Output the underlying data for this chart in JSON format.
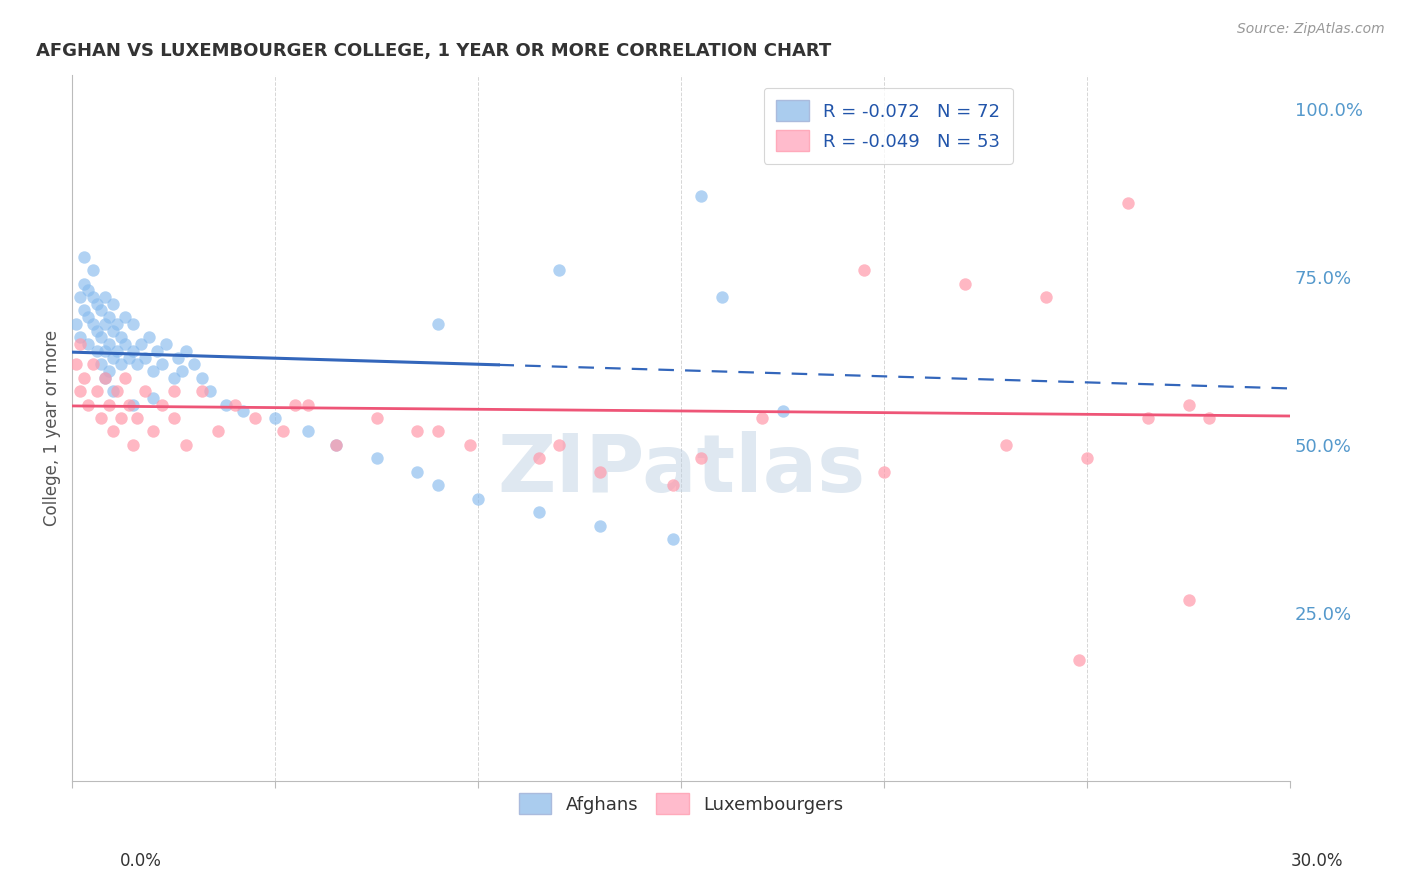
{
  "title": "AFGHAN VS LUXEMBOURGER COLLEGE, 1 YEAR OR MORE CORRELATION CHART",
  "source": "Source: ZipAtlas.com",
  "ylabel": "College, 1 year or more",
  "yaxis_labels": [
    "100.0%",
    "75.0%",
    "50.0%",
    "25.0%"
  ],
  "yaxis_values": [
    1.0,
    0.75,
    0.5,
    0.25
  ],
  "legend_afghan": "R = -0.072   N = 72",
  "legend_luxembourger": "R = -0.049   N = 53",
  "watermark": "ZIPatlas",
  "blue_dot": "#88BBEE",
  "pink_dot": "#FF99AA",
  "blue_light": "#AACCEE",
  "pink_light": "#FFBBCC",
  "trend_blue": "#3366BB",
  "trend_pink": "#EE5577",
  "afghan_x": [
    0.001,
    0.002,
    0.002,
    0.003,
    0.003,
    0.003,
    0.004,
    0.004,
    0.004,
    0.005,
    0.005,
    0.005,
    0.006,
    0.006,
    0.006,
    0.007,
    0.007,
    0.007,
    0.008,
    0.008,
    0.008,
    0.008,
    0.009,
    0.009,
    0.009,
    0.01,
    0.01,
    0.01,
    0.011,
    0.011,
    0.012,
    0.012,
    0.013,
    0.013,
    0.014,
    0.015,
    0.015,
    0.016,
    0.017,
    0.018,
    0.019,
    0.02,
    0.021,
    0.022,
    0.023,
    0.025,
    0.026,
    0.027,
    0.028,
    0.03,
    0.032,
    0.034,
    0.038,
    0.042,
    0.05,
    0.058,
    0.065,
    0.075,
    0.085,
    0.09,
    0.1,
    0.115,
    0.13,
    0.148,
    0.155,
    0.09,
    0.12,
    0.16,
    0.175,
    0.01,
    0.015,
    0.02
  ],
  "afghan_y": [
    0.68,
    0.72,
    0.66,
    0.7,
    0.74,
    0.78,
    0.69,
    0.73,
    0.65,
    0.68,
    0.72,
    0.76,
    0.67,
    0.71,
    0.64,
    0.66,
    0.7,
    0.62,
    0.68,
    0.64,
    0.72,
    0.6,
    0.65,
    0.69,
    0.61,
    0.67,
    0.63,
    0.71,
    0.64,
    0.68,
    0.62,
    0.66,
    0.65,
    0.69,
    0.63,
    0.64,
    0.68,
    0.62,
    0.65,
    0.63,
    0.66,
    0.61,
    0.64,
    0.62,
    0.65,
    0.6,
    0.63,
    0.61,
    0.64,
    0.62,
    0.6,
    0.58,
    0.56,
    0.55,
    0.54,
    0.52,
    0.5,
    0.48,
    0.46,
    0.44,
    0.42,
    0.4,
    0.38,
    0.36,
    0.87,
    0.68,
    0.76,
    0.72,
    0.55,
    0.58,
    0.56,
    0.57
  ],
  "luxembourger_x": [
    0.001,
    0.002,
    0.002,
    0.003,
    0.004,
    0.005,
    0.006,
    0.007,
    0.008,
    0.009,
    0.01,
    0.011,
    0.012,
    0.013,
    0.014,
    0.015,
    0.016,
    0.018,
    0.02,
    0.022,
    0.025,
    0.028,
    0.032,
    0.036,
    0.04,
    0.045,
    0.052,
    0.058,
    0.065,
    0.075,
    0.085,
    0.098,
    0.115,
    0.13,
    0.148,
    0.17,
    0.195,
    0.22,
    0.24,
    0.26,
    0.275,
    0.28,
    0.025,
    0.055,
    0.09,
    0.12,
    0.155,
    0.2,
    0.23,
    0.25,
    0.265,
    0.275,
    0.248
  ],
  "luxembourger_y": [
    0.62,
    0.58,
    0.65,
    0.6,
    0.56,
    0.62,
    0.58,
    0.54,
    0.6,
    0.56,
    0.52,
    0.58,
    0.54,
    0.6,
    0.56,
    0.5,
    0.54,
    0.58,
    0.52,
    0.56,
    0.54,
    0.5,
    0.58,
    0.52,
    0.56,
    0.54,
    0.52,
    0.56,
    0.5,
    0.54,
    0.52,
    0.5,
    0.48,
    0.46,
    0.44,
    0.54,
    0.76,
    0.74,
    0.72,
    0.86,
    0.56,
    0.54,
    0.58,
    0.56,
    0.52,
    0.5,
    0.48,
    0.46,
    0.5,
    0.48,
    0.54,
    0.27,
    0.18
  ],
  "xlim": [
    0.0,
    0.3
  ],
  "ylim": [
    0.0,
    1.05
  ],
  "figsize": [
    14.06,
    8.92
  ],
  "dpi": 100,
  "blue_trend_solid_end": 0.105,
  "pink_trend_solid_end": 0.3
}
